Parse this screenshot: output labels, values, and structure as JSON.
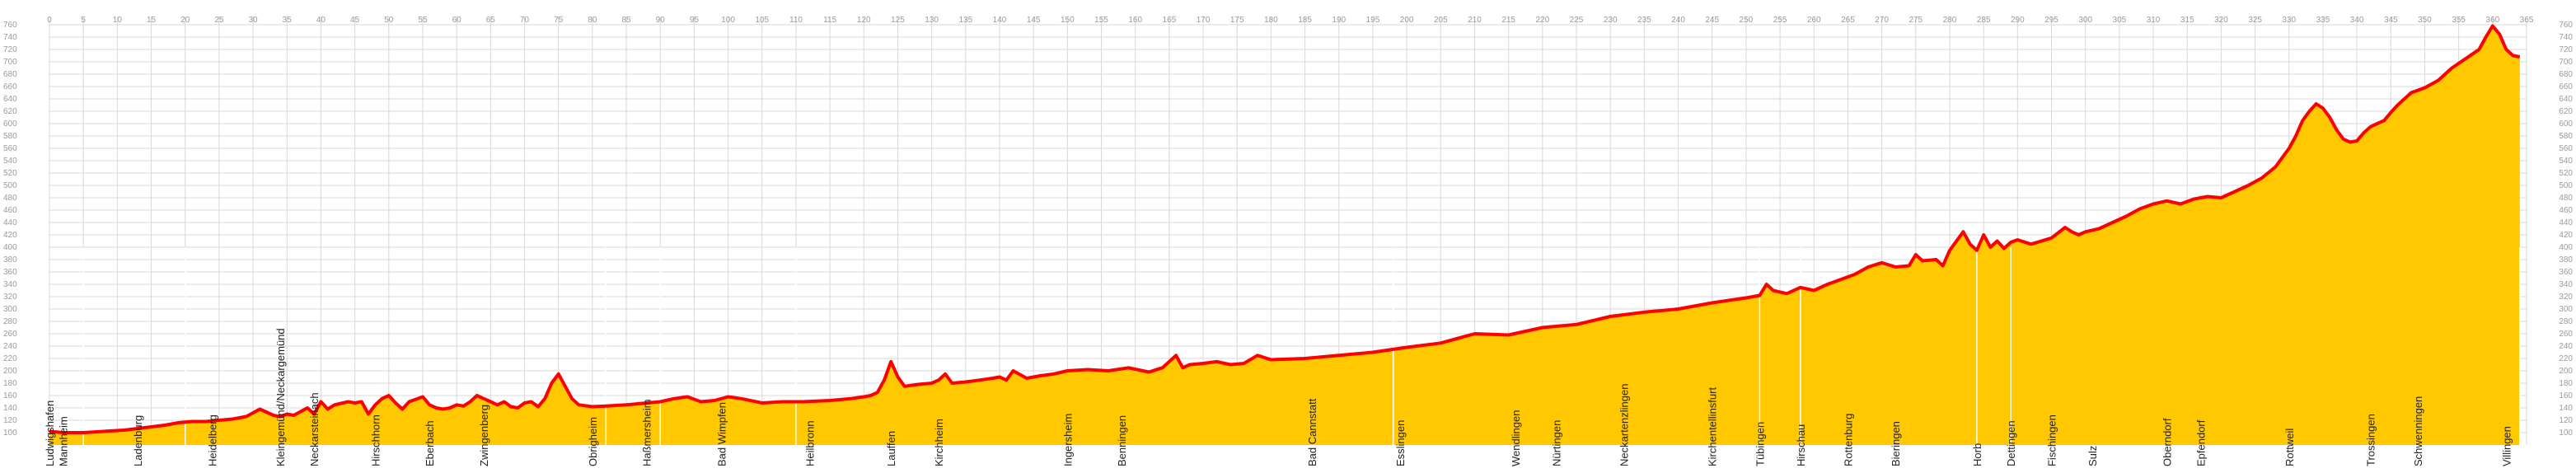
{
  "chart_data": {
    "type": "area",
    "title": "",
    "xlabel": "",
    "ylabel": "",
    "xlim": [
      0,
      365
    ],
    "ylim": [
      80,
      760
    ],
    "x_ticks": [
      0,
      5,
      10,
      15,
      20,
      25,
      30,
      35,
      40,
      45,
      50,
      55,
      60,
      65,
      70,
      75,
      80,
      85,
      90,
      95,
      100,
      105,
      110,
      115,
      120,
      125,
      130,
      135,
      140,
      145,
      150,
      155,
      160,
      165,
      170,
      175,
      180,
      185,
      190,
      195,
      200,
      205,
      210,
      215,
      220,
      225,
      230,
      235,
      240,
      245,
      250,
      255,
      260,
      265,
      270,
      275,
      280,
      285,
      290,
      295,
      300,
      305,
      310,
      315,
      320,
      325,
      330,
      335,
      340,
      345,
      350,
      355,
      360,
      365
    ],
    "y_ticks": [
      100,
      120,
      140,
      160,
      180,
      200,
      220,
      240,
      260,
      280,
      300,
      320,
      340,
      360,
      380,
      400,
      420,
      440,
      460,
      480,
      500,
      520,
      540,
      560,
      580,
      600,
      620,
      640,
      660,
      680,
      700,
      720,
      740,
      760
    ],
    "grid": true,
    "colors": {
      "fill": "#ffc800",
      "line": "#ff0000",
      "grid": "#d8d8d8",
      "tick_text": "#9a9a9a",
      "label_text": "#222222"
    },
    "series": [
      {
        "x": [
          0,
          2,
          5,
          8,
          11,
          14,
          17,
          19,
          21,
          23,
          25,
          27,
          29,
          31,
          33,
          34,
          35,
          36,
          38,
          39,
          40,
          41,
          42,
          44,
          45,
          46,
          47,
          48,
          49,
          50,
          51,
          52,
          53,
          55,
          56,
          57,
          58,
          59,
          60,
          61,
          62,
          63,
          64,
          65,
          66,
          67,
          68,
          69,
          70,
          71,
          72,
          73,
          74,
          75,
          76,
          77,
          78,
          80,
          82,
          85,
          88,
          90,
          92,
          94,
          96,
          98,
          100,
          102,
          105,
          108,
          111,
          115,
          118,
          120,
          121,
          122,
          123,
          124,
          125,
          126,
          128,
          130,
          131,
          132,
          133,
          135,
          137,
          139,
          140,
          141,
          142,
          144,
          146,
          148,
          150,
          153,
          156,
          159,
          162,
          164,
          165,
          166,
          167,
          168,
          170,
          172,
          174,
          176,
          178,
          180,
          185,
          190,
          195,
          200,
          205,
          210,
          215,
          220,
          225,
          230,
          235,
          240,
          245,
          248,
          250,
          252,
          253,
          254,
          256,
          258,
          260,
          262,
          264,
          266,
          268,
          270,
          272,
          274,
          275,
          276,
          278,
          279,
          280,
          282,
          283,
          284,
          285,
          286,
          287,
          288,
          289,
          290,
          292,
          295,
          297,
          298,
          299,
          300,
          302,
          304,
          306,
          308,
          310,
          312,
          314,
          316,
          318,
          320,
          322,
          324,
          326,
          328,
          329,
          330,
          331,
          332,
          333,
          334,
          335,
          336,
          337,
          338,
          339,
          340,
          341,
          342,
          343,
          344,
          345,
          346,
          347,
          348,
          350,
          352,
          354,
          356,
          358,
          359,
          360,
          361,
          362,
          363,
          364
        ],
        "y": [
          102,
          100,
          100,
          102,
          104,
          108,
          112,
          116,
          118,
          118,
          120,
          122,
          126,
          138,
          128,
          126,
          130,
          128,
          140,
          130,
          150,
          138,
          145,
          150,
          148,
          150,
          130,
          145,
          155,
          160,
          148,
          138,
          150,
          158,
          145,
          140,
          138,
          140,
          145,
          143,
          150,
          160,
          155,
          150,
          145,
          150,
          142,
          140,
          148,
          150,
          142,
          155,
          180,
          195,
          175,
          155,
          145,
          142,
          143,
          145,
          148,
          150,
          155,
          158,
          150,
          152,
          158,
          155,
          148,
          150,
          150,
          152,
          155,
          158,
          160,
          165,
          185,
          215,
          190,
          175,
          178,
          180,
          185,
          195,
          180,
          182,
          185,
          188,
          190,
          185,
          200,
          188,
          192,
          195,
          200,
          202,
          200,
          205,
          198,
          205,
          215,
          225,
          205,
          210,
          212,
          215,
          210,
          212,
          225,
          218,
          220,
          225,
          230,
          238,
          245,
          260,
          258,
          270,
          275,
          288,
          295,
          300,
          310,
          315,
          318,
          322,
          340,
          330,
          325,
          335,
          330,
          340,
          348,
          356,
          368,
          375,
          368,
          370,
          388,
          378,
          380,
          370,
          395,
          425,
          405,
          395,
          420,
          400,
          410,
          398,
          408,
          412,
          405,
          415,
          432,
          425,
          420,
          425,
          430,
          440,
          450,
          462,
          470,
          475,
          470,
          478,
          482,
          480,
          490,
          500,
          512,
          530,
          545,
          560,
          580,
          605,
          620,
          632,
          625,
          610,
          590,
          575,
          570,
          572,
          585,
          595,
          600,
          605,
          618,
          630,
          640,
          650,
          658,
          670,
          690,
          705,
          720,
          740,
          758,
          745,
          720,
          710,
          708
        ]
      }
    ],
    "places": [
      {
        "km": 0,
        "name": "Ludwigshafen"
      },
      {
        "km": 2,
        "name": "Mannheim"
      },
      {
        "km": 13,
        "name": "Ladenburg"
      },
      {
        "km": 24,
        "name": "Heidelberg"
      },
      {
        "km": 34,
        "name": "Kleingemünd/Neckargemünd"
      },
      {
        "km": 39,
        "name": "Neckarsteinach"
      },
      {
        "km": 48,
        "name": "Hirschhorn"
      },
      {
        "km": 56,
        "name": "Eberbach"
      },
      {
        "km": 64,
        "name": "Zwingenberg"
      },
      {
        "km": 80,
        "name": "Obrigheim"
      },
      {
        "km": 88,
        "name": "Haßmersheim"
      },
      {
        "km": 99,
        "name": "Bad Wimpfen"
      },
      {
        "km": 112,
        "name": "Heilbronn"
      },
      {
        "km": 124,
        "name": "Lauffen"
      },
      {
        "km": 131,
        "name": "Kirchheim"
      },
      {
        "km": 150,
        "name": "Ingersheim"
      },
      {
        "km": 158,
        "name": "Benningen"
      },
      {
        "km": 186,
        "name": "Bad Cannstatt"
      },
      {
        "km": 199,
        "name": "Esslingen"
      },
      {
        "km": 216,
        "name": "Wendlingen"
      },
      {
        "km": 222,
        "name": "Nürtingen"
      },
      {
        "km": 232,
        "name": "Neckartenzlingen"
      },
      {
        "km": 245,
        "name": "Kirchentellinsfurt"
      },
      {
        "km": 252,
        "name": "Tübingen"
      },
      {
        "km": 258,
        "name": "Hirschau"
      },
      {
        "km": 265,
        "name": "Rottenburg"
      },
      {
        "km": 272,
        "name": "Bieringen"
      },
      {
        "km": 284,
        "name": "Horb"
      },
      {
        "km": 289,
        "name": "Dettingen"
      },
      {
        "km": 295,
        "name": "Fischingen"
      },
      {
        "km": 301,
        "name": "Sulz"
      },
      {
        "km": 312,
        "name": "Oberndorf"
      },
      {
        "km": 317,
        "name": "Epfendorf"
      },
      {
        "km": 330,
        "name": "Rottweil"
      },
      {
        "km": 342,
        "name": "Trossingen"
      },
      {
        "km": 349,
        "name": "Schwenningen"
      },
      {
        "km": 362,
        "name": "Villingen"
      }
    ]
  }
}
